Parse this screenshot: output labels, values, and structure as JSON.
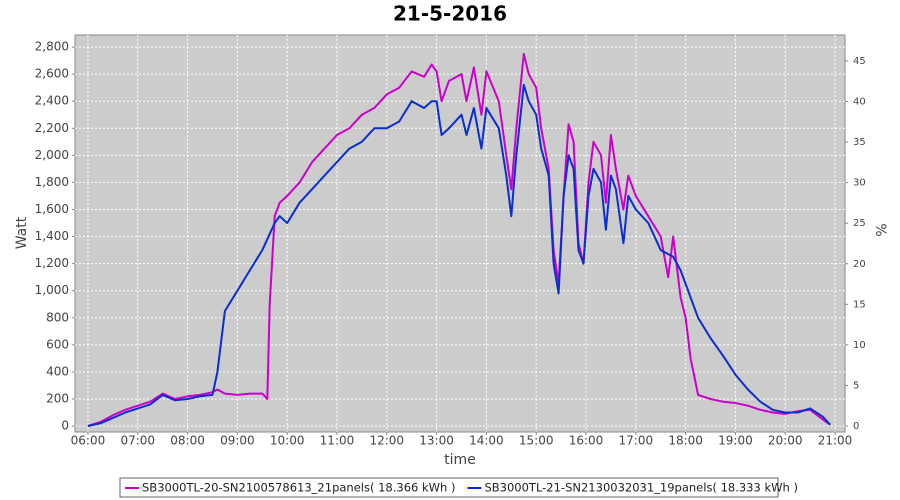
{
  "chart_data": {
    "type": "line",
    "title": "21-5-2016",
    "x_label": "time",
    "y_label": "Watt",
    "y2_label": "%",
    "background": "#cccccc",
    "grid": true,
    "xlim": [
      5.74,
      21.2
    ],
    "xticks": [
      {
        "value": 6,
        "label": "06:00"
      },
      {
        "value": 7,
        "label": "07:00"
      },
      {
        "value": 8,
        "label": "08:00"
      },
      {
        "value": 9,
        "label": "09:00"
      },
      {
        "value": 10,
        "label": "10:00"
      },
      {
        "value": 11,
        "label": "11:00"
      },
      {
        "value": 12,
        "label": "12:00"
      },
      {
        "value": 13,
        "label": "13:00"
      },
      {
        "value": 14,
        "label": "14:00"
      },
      {
        "value": 15,
        "label": "15:00"
      },
      {
        "value": 16,
        "label": "16:00"
      },
      {
        "value": 17,
        "label": "17:00"
      },
      {
        "value": 18,
        "label": "18:00"
      },
      {
        "value": 19,
        "label": "19:00"
      },
      {
        "value": 20,
        "label": "20:00"
      },
      {
        "value": 21,
        "label": "21:00"
      }
    ],
    "ylim": [
      -44,
      2889
    ],
    "yticks": [
      0,
      200,
      400,
      600,
      800,
      {
        "value": 1000,
        "label": "1,000"
      },
      {
        "value": 1200,
        "label": "1,200"
      },
      {
        "value": 1400,
        "label": "1,400"
      },
      {
        "value": 1600,
        "label": "1,600"
      },
      {
        "value": 1800,
        "label": "1,800"
      },
      {
        "value": 2000,
        "label": "2,000"
      },
      {
        "value": 2200,
        "label": "2,200"
      },
      {
        "value": 2400,
        "label": "2,400"
      },
      {
        "value": 2600,
        "label": "2,600"
      },
      {
        "value": 2800,
        "label": "2,800"
      }
    ],
    "y2lim": [
      -0.74,
      48.2
    ],
    "y2ticks": [
      0,
      5,
      10,
      15,
      20,
      25,
      30,
      35,
      40,
      45
    ],
    "x": [
      6.0,
      6.25,
      6.5,
      6.75,
      7.0,
      7.25,
      7.5,
      7.75,
      8.0,
      8.25,
      8.5,
      8.6,
      8.75,
      9.0,
      9.25,
      9.5,
      9.6,
      9.65,
      9.75,
      9.85,
      10.0,
      10.25,
      10.5,
      10.75,
      11.0,
      11.25,
      11.5,
      11.75,
      12.0,
      12.25,
      12.5,
      12.75,
      12.9,
      13.0,
      13.1,
      13.25,
      13.5,
      13.6,
      13.75,
      13.9,
      14.0,
      14.25,
      14.4,
      14.5,
      14.6,
      14.75,
      14.85,
      15.0,
      15.1,
      15.25,
      15.35,
      15.45,
      15.55,
      15.65,
      15.75,
      15.85,
      15.95,
      16.05,
      16.15,
      16.3,
      16.4,
      16.5,
      16.6,
      16.75,
      16.85,
      17.0,
      17.25,
      17.5,
      17.65,
      17.75,
      17.9,
      18.0,
      18.1,
      18.25,
      18.5,
      18.75,
      19.0,
      19.25,
      19.5,
      19.75,
      20.0,
      20.25,
      20.5,
      20.75,
      20.9
    ],
    "series": [
      {
        "name": "SB3000TL-20-SN2100578613_21panels( 18.366 kWh )",
        "color": "#cc00cc",
        "values": [
          0,
          30,
          80,
          120,
          150,
          180,
          240,
          200,
          220,
          230,
          250,
          270,
          240,
          230,
          240,
          240,
          200,
          900,
          1550,
          1650,
          1700,
          1800,
          1950,
          2050,
          2150,
          2200,
          2300,
          2350,
          2450,
          2500,
          2620,
          2580,
          2670,
          2620,
          2400,
          2550,
          2600,
          2400,
          2650,
          2300,
          2620,
          2400,
          2000,
          1750,
          2200,
          2750,
          2600,
          2500,
          2200,
          1900,
          1300,
          1050,
          1700,
          2230,
          2100,
          1350,
          1200,
          1800,
          2100,
          2000,
          1650,
          2150,
          1900,
          1600,
          1850,
          1700,
          1550,
          1400,
          1100,
          1400,
          950,
          800,
          500,
          230,
          200,
          180,
          170,
          150,
          120,
          100,
          90,
          110,
          120,
          50,
          10
        ]
      },
      {
        "name": "SB3000TL-21-SN2130032031_19panels( 18.333 kWh )",
        "color": "#0a2fcc",
        "values": [
          0,
          20,
          60,
          100,
          130,
          160,
          230,
          190,
          200,
          220,
          230,
          400,
          850,
          1000,
          1150,
          1300,
          1380,
          1420,
          1500,
          1550,
          1500,
          1650,
          1750,
          1850,
          1950,
          2050,
          2100,
          2200,
          2200,
          2250,
          2400,
          2350,
          2400,
          2400,
          2150,
          2200,
          2300,
          2150,
          2350,
          2050,
          2350,
          2200,
          1850,
          1550,
          2000,
          2520,
          2400,
          2300,
          2050,
          1850,
          1200,
          980,
          1700,
          2000,
          1900,
          1300,
          1200,
          1700,
          1900,
          1800,
          1450,
          1850,
          1750,
          1350,
          1700,
          1600,
          1500,
          1300,
          1270,
          1250,
          1150,
          1050,
          950,
          800,
          650,
          520,
          380,
          270,
          180,
          120,
          100,
          100,
          130,
          70,
          10
        ]
      }
    ]
  }
}
